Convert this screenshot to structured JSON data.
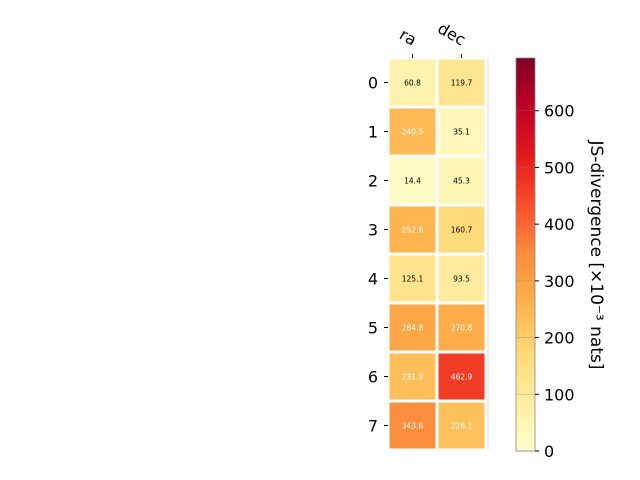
{
  "chart_data": {
    "type": "heatmap",
    "columns": [
      "ra",
      "dec"
    ],
    "rows": [
      "0",
      "1",
      "2",
      "3",
      "4",
      "5",
      "6",
      "7"
    ],
    "values": [
      [
        60.8,
        119.7
      ],
      [
        240.5,
        35.1
      ],
      [
        14.4,
        45.3
      ],
      [
        252.6,
        160.7
      ],
      [
        125.1,
        93.5
      ],
      [
        284.8,
        270.8
      ],
      [
        231.9,
        462.9
      ],
      [
        343.6,
        226.1
      ]
    ],
    "value_labels": [
      [
        "60.8",
        "119.7"
      ],
      [
        "240.5",
        "35.1"
      ],
      [
        "14.4",
        "45.3"
      ],
      [
        "252.6",
        "160.7"
      ],
      [
        "125.1",
        "93.5"
      ],
      [
        "284.8",
        "270.8"
      ],
      [
        "231.9",
        "462.9"
      ],
      [
        "343.6",
        "226.1"
      ]
    ],
    "colorbar": {
      "label": "JS-divergence [×10⁻³ nats]",
      "range": [
        0,
        693
      ],
      "ticks": [
        0,
        100,
        200,
        300,
        400,
        500,
        600
      ],
      "colormap": "YlOrRd"
    },
    "grid": false,
    "colors": {
      "cell_border": "#ffffff",
      "text_light": "#ffffff",
      "text_dark": "#000000"
    }
  }
}
